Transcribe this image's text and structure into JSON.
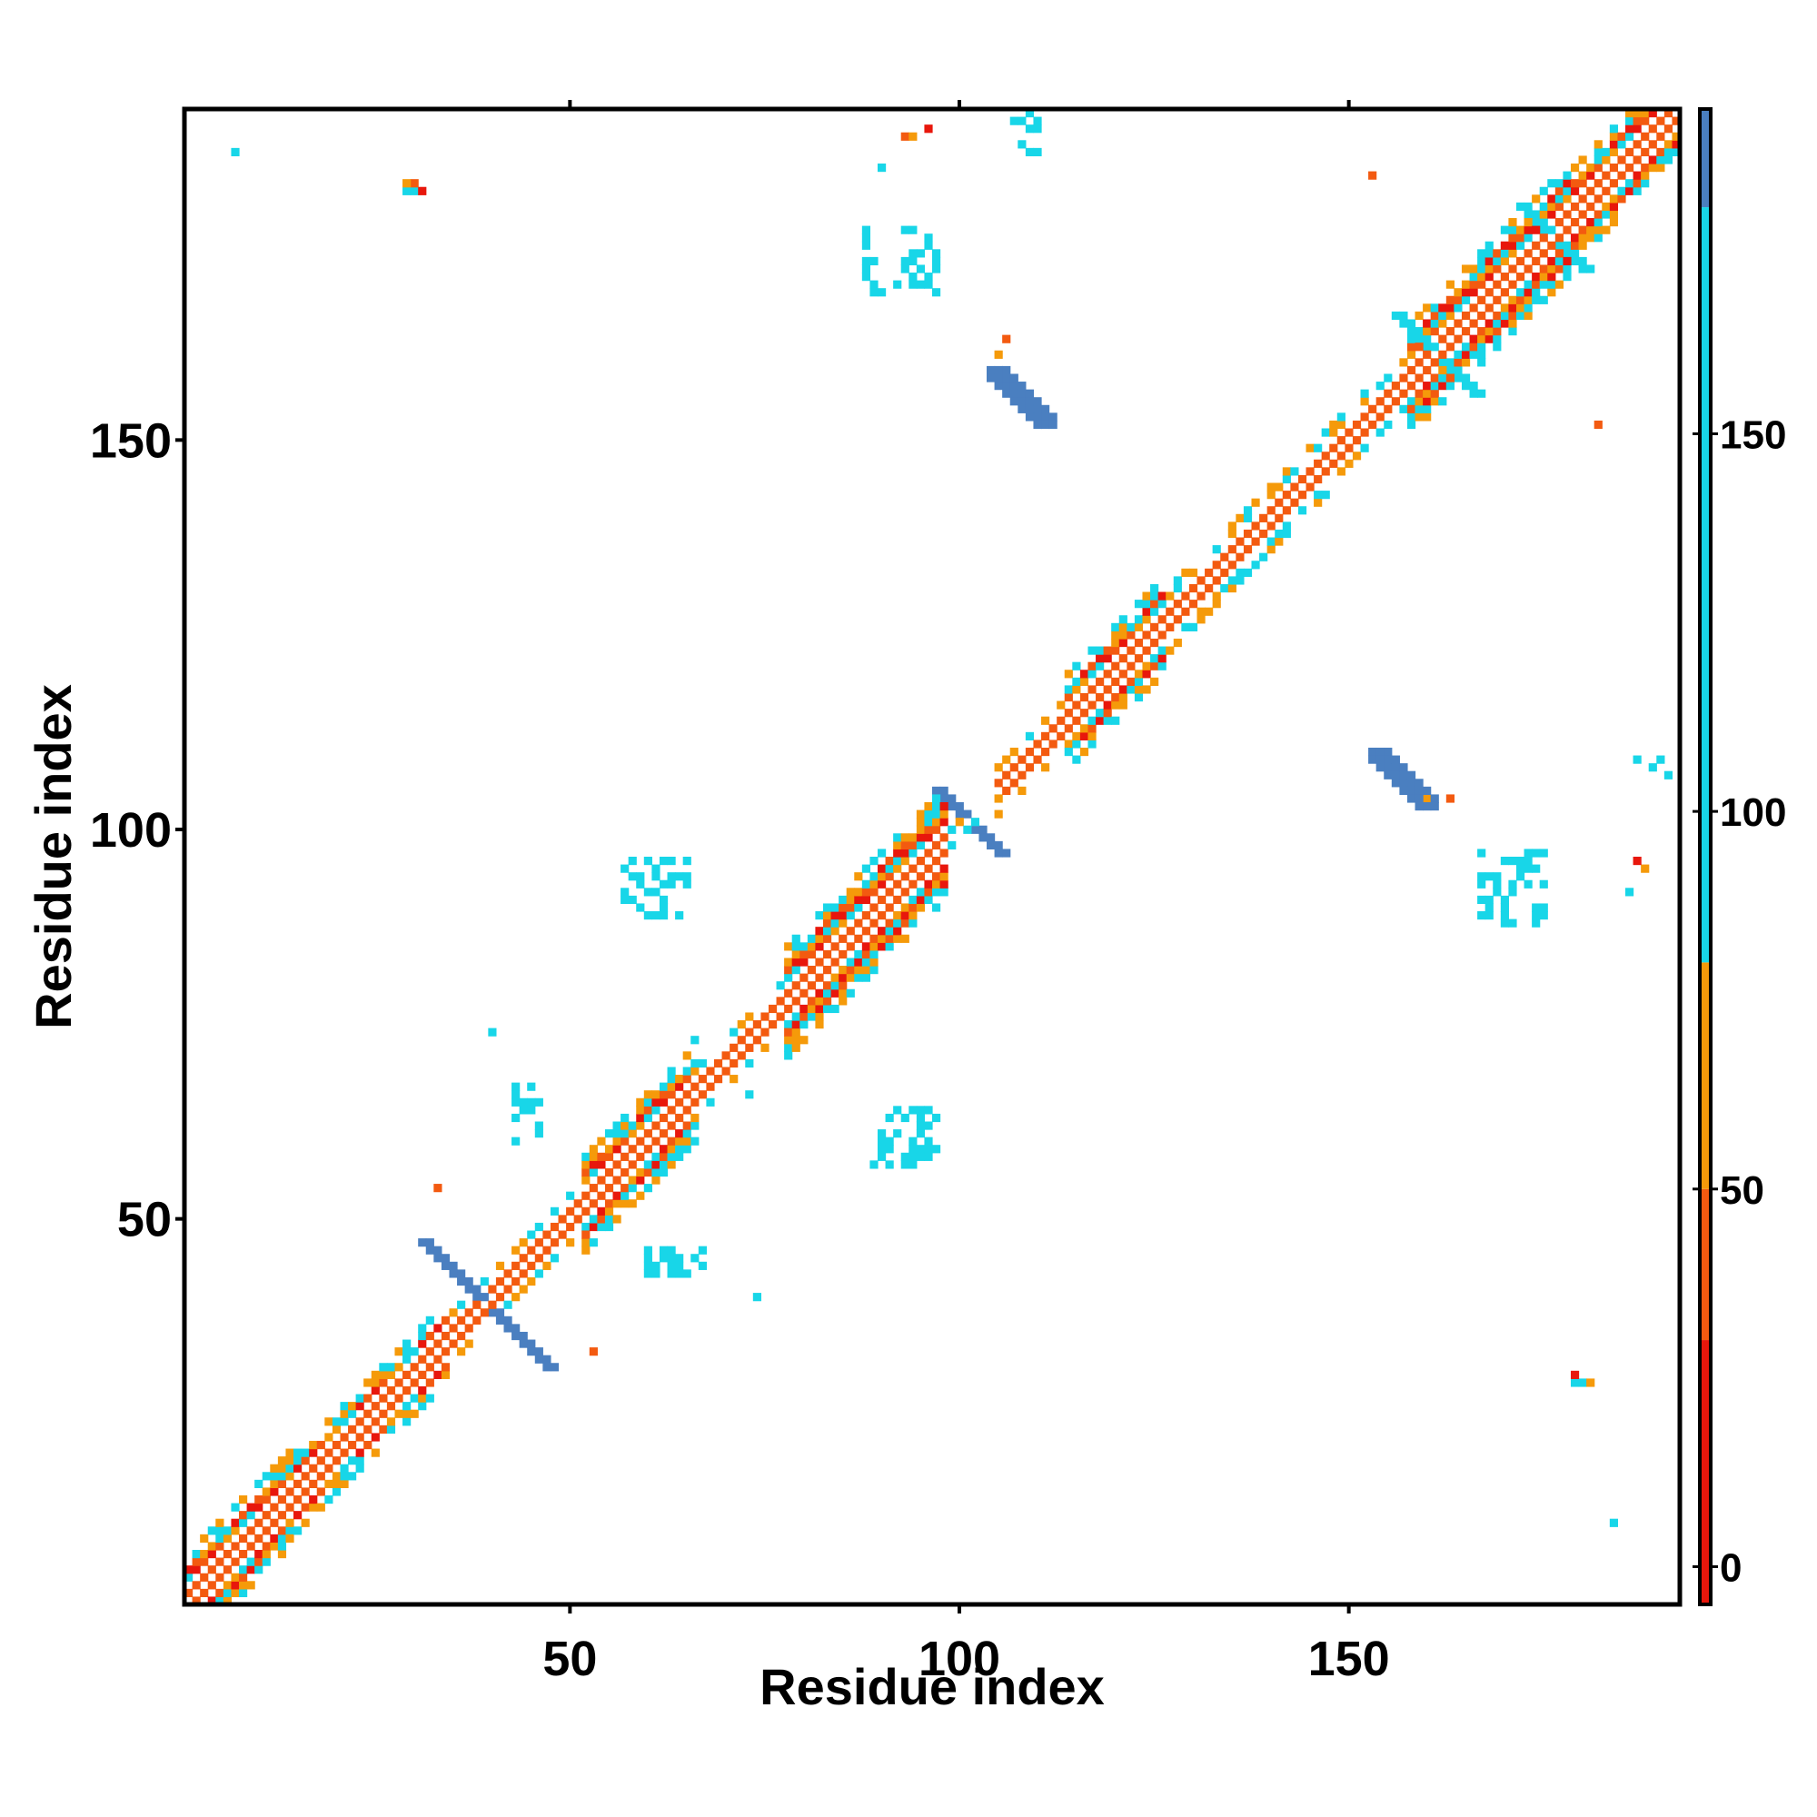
{
  "chart_data": {
    "type": "heatmap",
    "title": "",
    "xlabel": "Residue index",
    "ylabel": "Residue index",
    "xlim": [
      1,
      192
    ],
    "ylim": [
      1,
      192
    ],
    "x_ticks": [
      50,
      100,
      150
    ],
    "y_ticks": [
      50,
      100,
      150
    ],
    "grid": false,
    "colorbar": {
      "ticks": [
        0,
        50,
        100,
        150
      ],
      "range": [
        -5,
        193
      ],
      "bands": [
        {
          "from": -5,
          "to": 30,
          "color": "#e8170c"
        },
        {
          "from": 30,
          "to": 50,
          "color": "#f35a10"
        },
        {
          "from": 50,
          "to": 80,
          "color": "#f59a0a"
        },
        {
          "from": 80,
          "to": 180,
          "color": "#18d6e8"
        },
        {
          "from": 180,
          "to": 193,
          "color": "#4a7fc0"
        }
      ],
      "top_color": "#ffffff"
    },
    "diagonal": {
      "start": 1,
      "end": 192,
      "segments": [
        {
          "from": 1,
          "to": 14,
          "width": 6
        },
        {
          "from": 14,
          "to": 34,
          "width": 5
        },
        {
          "from": 34,
          "to": 44,
          "width": 3
        },
        {
          "from": 44,
          "to": 52,
          "width": 3
        },
        {
          "from": 52,
          "to": 66,
          "width": 6
        },
        {
          "from": 66,
          "to": 78,
          "width": 3
        },
        {
          "from": 78,
          "to": 98,
          "width": 7
        },
        {
          "from": 98,
          "to": 105,
          "width": 2
        },
        {
          "from": 105,
          "to": 114,
          "width": 3
        },
        {
          "from": 114,
          "to": 126,
          "width": 6
        },
        {
          "from": 126,
          "to": 152,
          "width": 4
        },
        {
          "from": 152,
          "to": 158,
          "width": 3
        },
        {
          "from": 158,
          "to": 178,
          "width": 7
        },
        {
          "from": 178,
          "to": 192,
          "width": 6
        }
      ]
    },
    "crosses": [
      {
        "x": 39,
        "y": 39,
        "len": 8,
        "color": "#4a7fc0"
      },
      {
        "x": 101,
        "y": 101,
        "len": 4,
        "color": "#4a7fc0"
      },
      {
        "x": 161,
        "y": 161,
        "len": 5,
        "color": "#18d6e8"
      },
      {
        "x": 176,
        "y": 176,
        "len": 4,
        "color": "#18d6e8"
      }
    ],
    "strands": [
      {
        "x1": 153,
        "y1": 110,
        "x2": 159,
        "y2": 104,
        "width": 3,
        "color": "#4a7fc0"
      },
      {
        "x1": 104,
        "y1": 159,
        "x2": 110,
        "y2": 153,
        "width": 3,
        "color": "#4a7fc0"
      }
    ],
    "clusters": [
      {
        "x": 57,
        "y": 89,
        "w": 9,
        "h": 8
      },
      {
        "x": 89,
        "y": 57,
        "w": 9,
        "h": 8
      },
      {
        "x": 88,
        "y": 169,
        "w": 10,
        "h": 9
      },
      {
        "x": 167,
        "y": 88,
        "w": 9,
        "h": 10
      },
      {
        "x": 43,
        "y": 60,
        "w": 4,
        "h": 8
      },
      {
        "x": 60,
        "y": 43,
        "w": 8,
        "h": 4
      },
      {
        "x": 107,
        "y": 187,
        "w": 4,
        "h": 6
      },
      {
        "x": 187,
        "y": 107,
        "w": 6,
        "h": 3
      }
    ],
    "points": [
      {
        "x": 7,
        "y": 187,
        "v": 110
      },
      {
        "x": 29,
        "y": 182,
        "v": 100
      },
      {
        "x": 30,
        "y": 182,
        "v": 100
      },
      {
        "x": 31,
        "y": 182,
        "v": 10
      },
      {
        "x": 30,
        "y": 183,
        "v": 40
      },
      {
        "x": 29,
        "y": 183,
        "v": 60
      },
      {
        "x": 93,
        "y": 189,
        "v": 40
      },
      {
        "x": 94,
        "y": 189,
        "v": 60
      },
      {
        "x": 96,
        "y": 190,
        "v": 20
      },
      {
        "x": 90,
        "y": 185,
        "v": 110
      },
      {
        "x": 153,
        "y": 184,
        "v": 40
      },
      {
        "x": 182,
        "y": 152,
        "v": 40
      },
      {
        "x": 184,
        "y": 11,
        "v": 100
      },
      {
        "x": 179,
        "y": 29,
        "v": 100
      },
      {
        "x": 180,
        "y": 29,
        "v": 100
      },
      {
        "x": 181,
        "y": 29,
        "v": 60
      },
      {
        "x": 179,
        "y": 30,
        "v": 20
      },
      {
        "x": 188,
        "y": 95,
        "v": 60
      },
      {
        "x": 187,
        "y": 96,
        "v": 10
      },
      {
        "x": 186,
        "y": 92,
        "v": 110
      },
      {
        "x": 163,
        "y": 104,
        "v": 40
      },
      {
        "x": 160,
        "y": 104,
        "v": 60
      },
      {
        "x": 106,
        "y": 163,
        "v": 40
      },
      {
        "x": 105,
        "y": 161,
        "v": 60
      },
      {
        "x": 33,
        "y": 54,
        "v": 40
      },
      {
        "x": 53,
        "y": 33,
        "v": 40
      },
      {
        "x": 40,
        "y": 74,
        "v": 100
      },
      {
        "x": 74,
        "y": 40,
        "v": 100
      },
      {
        "x": 73,
        "y": 66,
        "v": 100
      },
      {
        "x": 66,
        "y": 73,
        "v": 100
      }
    ]
  }
}
